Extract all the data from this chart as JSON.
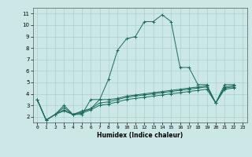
{
  "xlabel": "Humidex (Indice chaleur)",
  "xlim": [
    -0.5,
    23.5
  ],
  "ylim": [
    1.5,
    11.5
  ],
  "xticks": [
    0,
    1,
    2,
    3,
    4,
    5,
    6,
    7,
    8,
    9,
    10,
    11,
    12,
    13,
    14,
    15,
    16,
    17,
    18,
    19,
    20,
    21,
    22,
    23
  ],
  "yticks": [
    2,
    3,
    4,
    5,
    6,
    7,
    8,
    9,
    10,
    11
  ],
  "bg_color": "#cce8e6",
  "grid_color": "#aad0ce",
  "line_color": "#1a6b5a",
  "series": [
    [
      3.5,
      1.7,
      2.2,
      3.0,
      2.2,
      2.2,
      3.5,
      3.5,
      5.3,
      7.8,
      8.8,
      9.0,
      10.3,
      10.3,
      10.9,
      10.3,
      6.3,
      6.3,
      4.8,
      4.8,
      3.2,
      4.8,
      4.8
    ],
    [
      3.5,
      1.7,
      2.2,
      2.8,
      2.2,
      2.5,
      2.7,
      3.5,
      3.5,
      3.6,
      3.8,
      3.9,
      4.0,
      4.1,
      4.2,
      4.3,
      4.4,
      4.5,
      4.6,
      4.7,
      3.2,
      4.6,
      4.7
    ],
    [
      3.5,
      1.7,
      2.2,
      2.6,
      2.2,
      2.4,
      2.7,
      3.2,
      3.3,
      3.5,
      3.7,
      3.8,
      3.9,
      4.0,
      4.1,
      4.2,
      4.3,
      4.4,
      4.5,
      4.6,
      3.2,
      4.5,
      4.6
    ],
    [
      3.5,
      1.7,
      2.2,
      2.5,
      2.2,
      2.3,
      2.6,
      3.0,
      3.1,
      3.3,
      3.5,
      3.6,
      3.7,
      3.8,
      3.9,
      4.0,
      4.1,
      4.2,
      4.3,
      4.4,
      3.2,
      4.4,
      4.5
    ]
  ]
}
